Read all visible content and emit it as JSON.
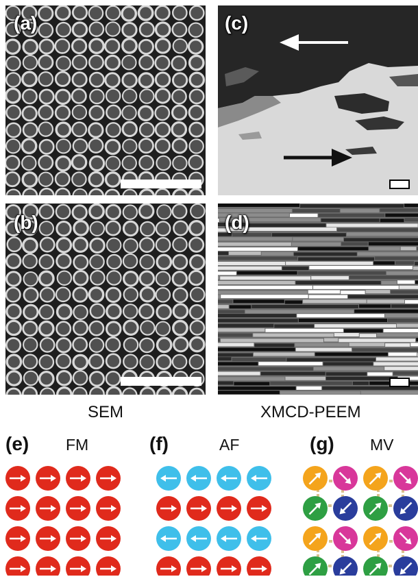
{
  "panels": {
    "a": {
      "label": "(a)"
    },
    "b": {
      "label": "(b)"
    },
    "c": {
      "label": "(c)"
    },
    "d": {
      "label": "(d)"
    }
  },
  "captions": {
    "sem": "SEM",
    "xmcd": "XMCD-PEEM"
  },
  "diagrams": {
    "e": {
      "label": "(e)",
      "name": "FM"
    },
    "f": {
      "label": "(f)",
      "name": "AF"
    },
    "g": {
      "label": "(g)",
      "name": "MV"
    }
  },
  "colors": {
    "red": "#e02a1c",
    "cyan": "#3fbfea",
    "orange": "#f4a41c",
    "magenta": "#d8379a",
    "green": "#2e9f43",
    "blue": "#2a3d9c",
    "dashed": "#d9c08e"
  }
}
